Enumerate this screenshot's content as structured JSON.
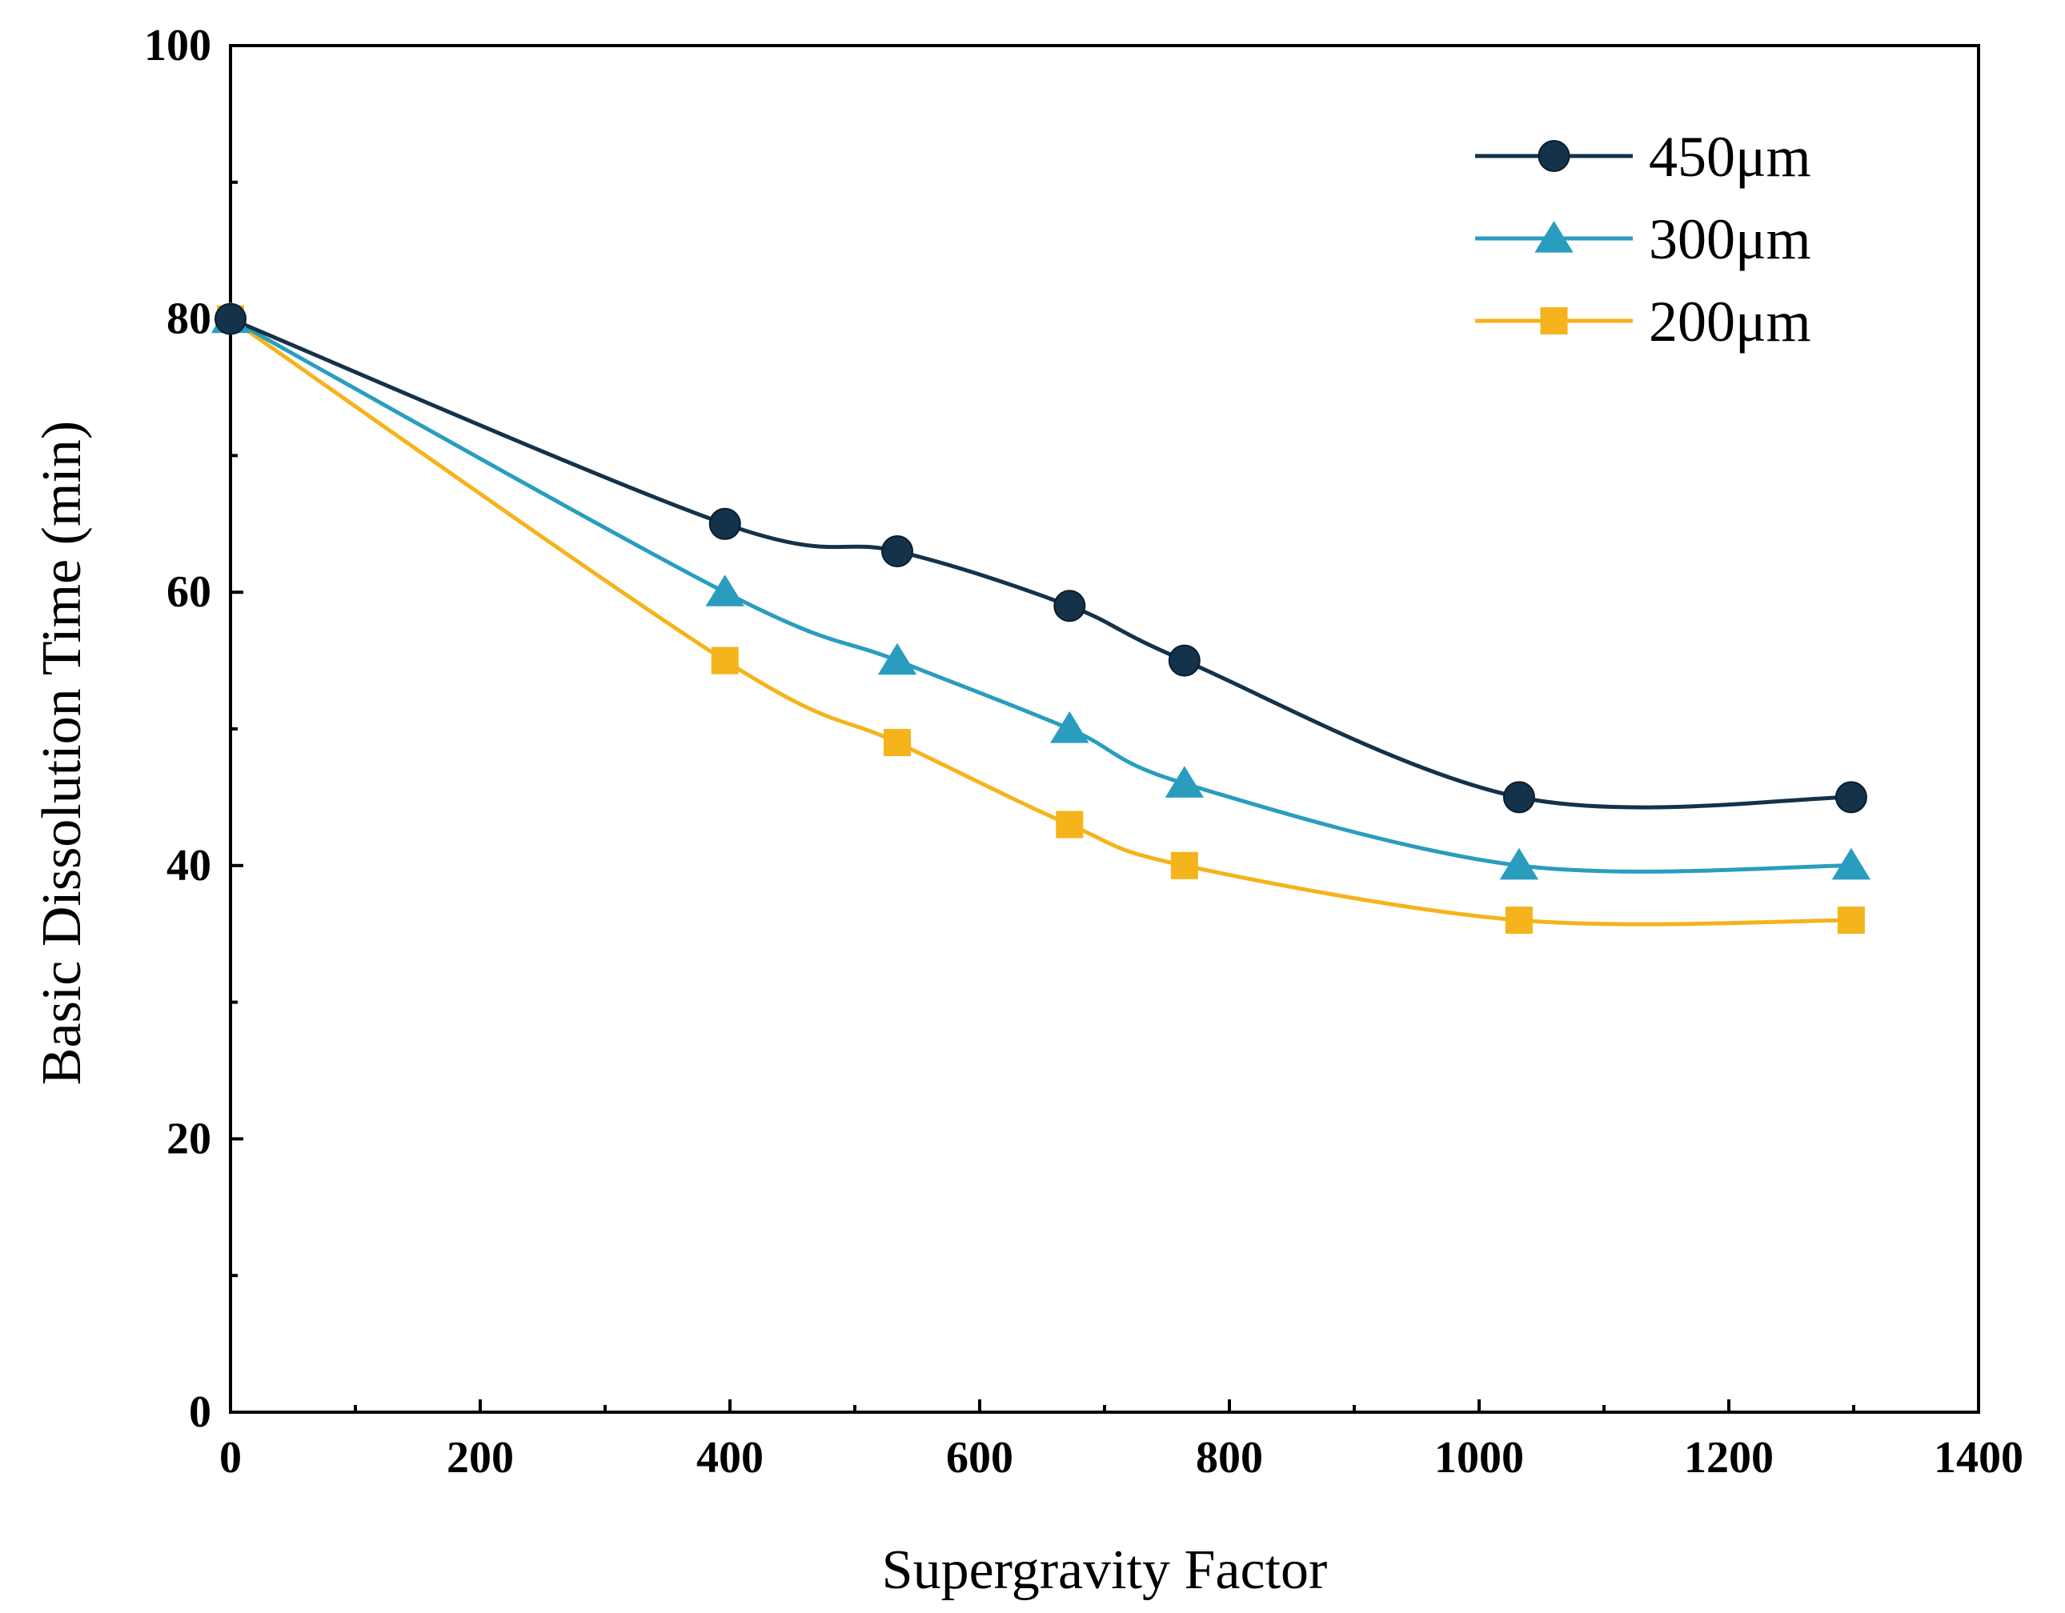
{
  "chart_data": {
    "type": "line",
    "title": "",
    "xlabel": "Supergravity Factor",
    "ylabel": "Basic Dissolution Time (min)",
    "xlim": [
      0,
      1400
    ],
    "ylim": [
      0,
      100
    ],
    "x_ticks": [
      "0",
      "200",
      "400",
      "600",
      "800",
      "1000",
      "1200",
      "1400"
    ],
    "y_ticks": [
      "0",
      "20",
      "40",
      "60",
      "80",
      "100"
    ],
    "grid": false,
    "legend_position": "top-right",
    "series": [
      {
        "name": "450μm",
        "marker": "circle",
        "color": "#14324a",
        "x": [
          0,
          396,
          534,
          672,
          764,
          1032,
          1298
        ],
        "y": [
          80,
          65,
          63,
          59,
          55,
          45,
          45
        ]
      },
      {
        "name": "300μm",
        "marker": "triangle",
        "color": "#2a9dbf",
        "x": [
          0,
          396,
          534,
          672,
          764,
          1032,
          1298
        ],
        "y": [
          80,
          60,
          55,
          50,
          46,
          40,
          40
        ]
      },
      {
        "name": "200μm",
        "marker": "square",
        "color": "#f5b31c",
        "x": [
          0,
          396,
          534,
          672,
          764,
          1032,
          1298
        ],
        "y": [
          80,
          55,
          49,
          43,
          40,
          36,
          36
        ]
      }
    ]
  }
}
